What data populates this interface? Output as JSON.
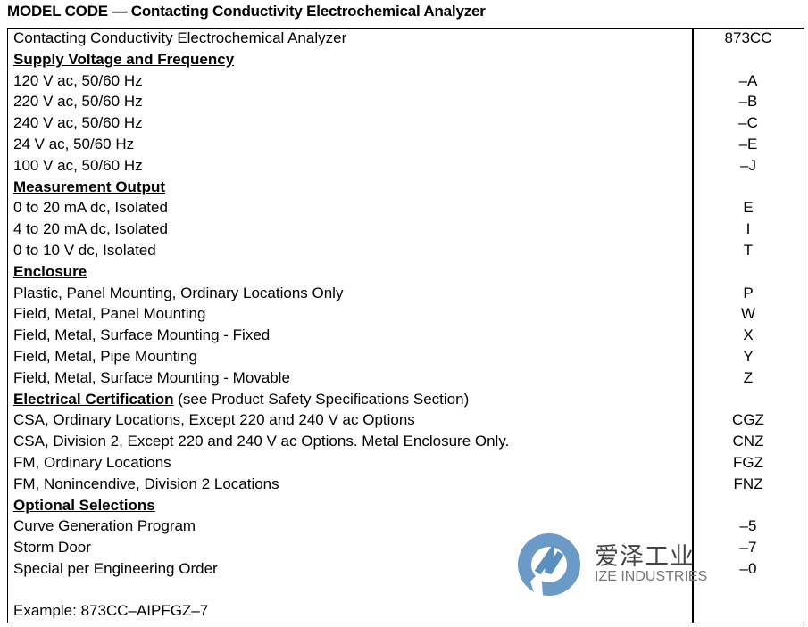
{
  "title": "MODEL CODE — Contacting Conductivity Electrochemical Analyzer",
  "rows": [
    {
      "type": "item",
      "desc": "Contacting Conductivity Electrochemical Analyzer",
      "code": "873CC"
    },
    {
      "type": "section",
      "desc": "Supply Voltage and Frequency",
      "code": ""
    },
    {
      "type": "item",
      "desc": "120 V ac, 50/60 Hz",
      "code": "–A"
    },
    {
      "type": "item",
      "desc": "220 V ac, 50/60 Hz",
      "code": "–B"
    },
    {
      "type": "item",
      "desc": "240 V ac, 50/60 Hz",
      "code": "–C"
    },
    {
      "type": "item",
      "desc": "24 V ac, 50/60 Hz",
      "code": "–E"
    },
    {
      "type": "item",
      "desc": "100 V ac, 50/60 Hz",
      "code": "–J"
    },
    {
      "type": "section",
      "desc": "Measurement Output",
      "code": ""
    },
    {
      "type": "item",
      "desc": "0 to 20 mA dc, Isolated",
      "code": "E"
    },
    {
      "type": "item",
      "desc": "4 to 20 mA dc, Isolated",
      "code": "I"
    },
    {
      "type": "item",
      "desc": "0 to 10 V dc, Isolated",
      "code": "T"
    },
    {
      "type": "section",
      "desc": "Enclosure",
      "code": ""
    },
    {
      "type": "item",
      "desc": "Plastic, Panel Mounting, Ordinary Locations Only",
      "code": "P"
    },
    {
      "type": "item",
      "desc": "Field, Metal, Panel Mounting",
      "code": "W"
    },
    {
      "type": "item",
      "desc": "Field, Metal, Surface Mounting - Fixed",
      "code": "X"
    },
    {
      "type": "item",
      "desc": "Field, Metal, Pipe Mounting",
      "code": "Y"
    },
    {
      "type": "item",
      "desc": "Field, Metal, Surface Mounting - Movable",
      "code": "Z"
    },
    {
      "type": "section",
      "desc": "Electrical Certification",
      "note": " (see Product Safety Specifications Section)",
      "code": ""
    },
    {
      "type": "item",
      "desc": "CSA, Ordinary Locations, Except 220 and 240 V ac Options",
      "code": "CGZ"
    },
    {
      "type": "item",
      "desc": "CSA, Division 2, Except 220 and 240 V ac Options. Metal Enclosure Only.",
      "code": "CNZ"
    },
    {
      "type": "item",
      "desc": "FM, Ordinary Locations",
      "code": "FGZ"
    },
    {
      "type": "item",
      "desc": "FM, Nonincendive, Division 2 Locations",
      "code": "FNZ"
    },
    {
      "type": "section",
      "desc": "Optional Selections",
      "code": ""
    },
    {
      "type": "item",
      "desc": "Curve Generation Program",
      "code": "–5"
    },
    {
      "type": "item",
      "desc": "Storm Door",
      "code": "–7"
    },
    {
      "type": "item",
      "desc": "Special per Engineering Order",
      "code": "–0"
    }
  ],
  "example": "Example: 873CC–AIPFGZ–7",
  "watermark": {
    "cn": "爱泽工业",
    "en": "IZE INDUSTRIES",
    "color": "#5b8fc0"
  }
}
